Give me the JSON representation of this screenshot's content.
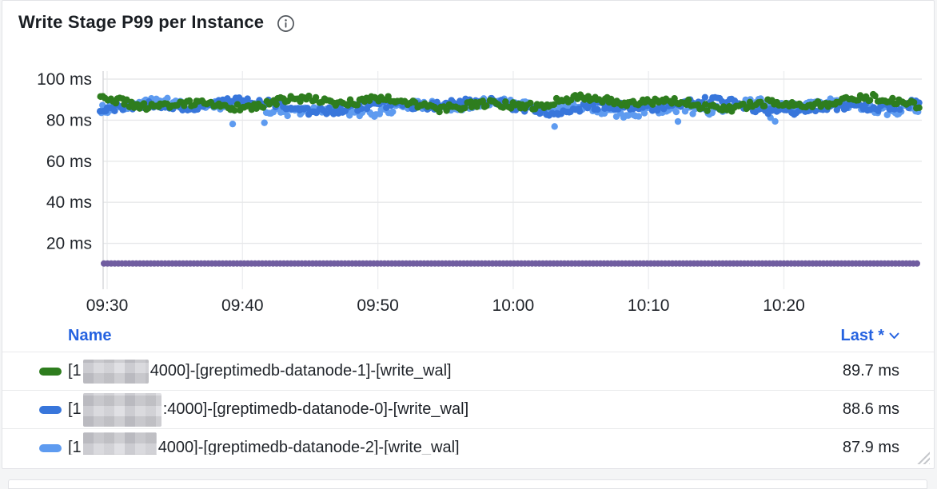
{
  "panel": {
    "title": "Write Stage P99 per Instance",
    "info_icon": "info-circle"
  },
  "chart_data": {
    "type": "scatter",
    "title": "Write Stage P99 per Instance",
    "unit": "ms",
    "grid": true,
    "ylim": [
      0,
      104
    ],
    "y_tick_values": [
      20,
      40,
      60,
      80,
      100
    ],
    "y_tick_labels": [
      "20 ms",
      "40 ms",
      "60 ms",
      "80 ms",
      "100 ms"
    ],
    "x_tick_labels": [
      "09:30",
      "09:40",
      "09:50",
      "10:00",
      "10:10",
      "10:20"
    ],
    "x_range": "approx 09:30 - 10:30",
    "legend_position": "bottom-table",
    "series": [
      {
        "name": "[1…:4000]-[greptimedb-datanode-1]-[write_wal]",
        "color": "#2E7D1E",
        "approx_mean_ms": 88.2,
        "approx_min_ms": 80,
        "approx_max_ms": 93,
        "jitter_ms": 3.4,
        "last_ms": 89.7
      },
      {
        "name": "[1…:4000]-[greptimedb-datanode-0]-[write_wal]",
        "color": "#3876DB",
        "approx_mean_ms": 86.8,
        "approx_min_ms": 79,
        "approx_max_ms": 92,
        "jitter_ms": 3.8,
        "last_ms": 88.6
      },
      {
        "name": "[1…:4000]-[greptimedb-datanode-2]-[write_wal]",
        "color": "#5E9BF0",
        "approx_mean_ms": 86.2,
        "approx_min_ms": 75,
        "approx_max_ms": 92,
        "jitter_ms": 4.2,
        "last_ms": 87.9
      },
      {
        "name": "unlabeled purple series (legend row not visible)",
        "color": "#705DA0",
        "approx_mean_ms": 10.2,
        "approx_min_ms": 10,
        "approx_max_ms": 10.5,
        "style": "flat dense band",
        "legend_row_visible": false
      }
    ]
  },
  "legend": {
    "header": {
      "name_label": "Name",
      "value_label": "Last *"
    },
    "rows": [
      {
        "prefix": "[1",
        "redacted": "pixelated IP address",
        "suffix": "4000]-[greptimedb-datanode-1]-[write_wal]",
        "value": "89.7 ms",
        "color": "#2E7D1E"
      },
      {
        "prefix": "[1",
        "redacted": "pixelated IP address",
        "suffix": ":4000]-[greptimedb-datanode-0]-[write_wal]",
        "value": "88.6 ms",
        "color": "#3876DB"
      },
      {
        "prefix": "[1",
        "redacted": "pixelated IP address",
        "suffix": "4000]-[greptimedb-datanode-2]-[write_wal]",
        "value": "87.9 ms",
        "color": "#5E9BF0"
      }
    ]
  },
  "colors": {
    "link_blue": "#2562E0",
    "grid_line": "#E7E8EA",
    "axis_line": "#D4D6D9",
    "text": "#1F2329",
    "panel_border": "#E2E3E7",
    "page_background": "#F4F5F6"
  }
}
